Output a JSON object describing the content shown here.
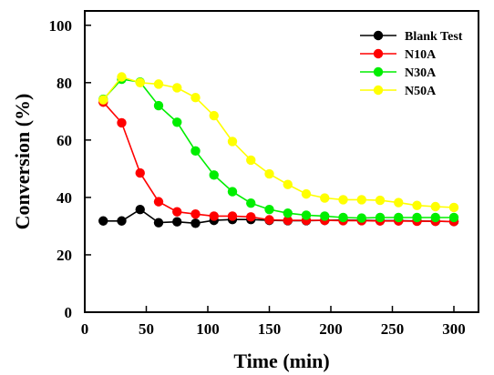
{
  "chart_data": {
    "type": "line",
    "title": "",
    "xlabel": "Time (min)",
    "ylabel": "Conversion (%)",
    "xlim": [
      0,
      320
    ],
    "ylim": [
      0,
      105
    ],
    "xticks": [
      0,
      50,
      100,
      150,
      200,
      250,
      300
    ],
    "yticks": [
      0,
      20,
      40,
      60,
      80,
      100
    ],
    "grid": false,
    "legend_position": "top-right",
    "series": [
      {
        "name": "Blank Test",
        "color": "#000000",
        "x": [
          15,
          30,
          45,
          60,
          75,
          90,
          105,
          120,
          135,
          150,
          165,
          180,
          195,
          210,
          225,
          240,
          255,
          270,
          285,
          300
        ],
        "y": [
          31.8,
          31.8,
          35.8,
          31.2,
          31.5,
          31.0,
          32.0,
          32.3,
          32.3,
          32.0,
          31.9,
          31.9,
          32.0,
          32.1,
          32.0,
          31.9,
          31.9,
          31.8,
          31.7,
          31.6
        ]
      },
      {
        "name": "N10A",
        "color": "#ff0000",
        "x": [
          15,
          30,
          45,
          60,
          75,
          90,
          105,
          120,
          135,
          150,
          165,
          180,
          195,
          210,
          225,
          240,
          255,
          270,
          285,
          300
        ],
        "y": [
          73.2,
          66.0,
          48.5,
          38.5,
          35.0,
          34.2,
          33.5,
          33.5,
          33.2,
          32.2,
          32.0,
          32.0,
          32.0,
          31.9,
          31.9,
          31.8,
          31.8,
          31.7,
          31.7,
          31.6
        ]
      },
      {
        "name": "N30A",
        "color": "#00ee00",
        "x": [
          15,
          30,
          45,
          60,
          75,
          90,
          105,
          120,
          135,
          150,
          165,
          180,
          195,
          210,
          225,
          240,
          255,
          270,
          285,
          300
        ],
        "y": [
          74.2,
          81.2,
          80.2,
          72.0,
          66.2,
          56.2,
          47.8,
          42.0,
          38.0,
          35.8,
          34.5,
          33.8,
          33.5,
          33.0,
          32.8,
          33.0,
          33.0,
          33.0,
          33.0,
          33.0
        ]
      },
      {
        "name": "N50A",
        "color": "#ffff00",
        "x": [
          15,
          30,
          45,
          60,
          75,
          90,
          105,
          120,
          135,
          150,
          165,
          180,
          195,
          210,
          225,
          240,
          255,
          270,
          285,
          300
        ],
        "y": [
          74.0,
          82.0,
          80.0,
          79.5,
          78.2,
          74.8,
          68.5,
          59.5,
          53.0,
          48.2,
          44.5,
          41.2,
          39.8,
          39.2,
          39.2,
          39.0,
          38.2,
          37.2,
          36.8,
          36.5
        ]
      }
    ]
  }
}
